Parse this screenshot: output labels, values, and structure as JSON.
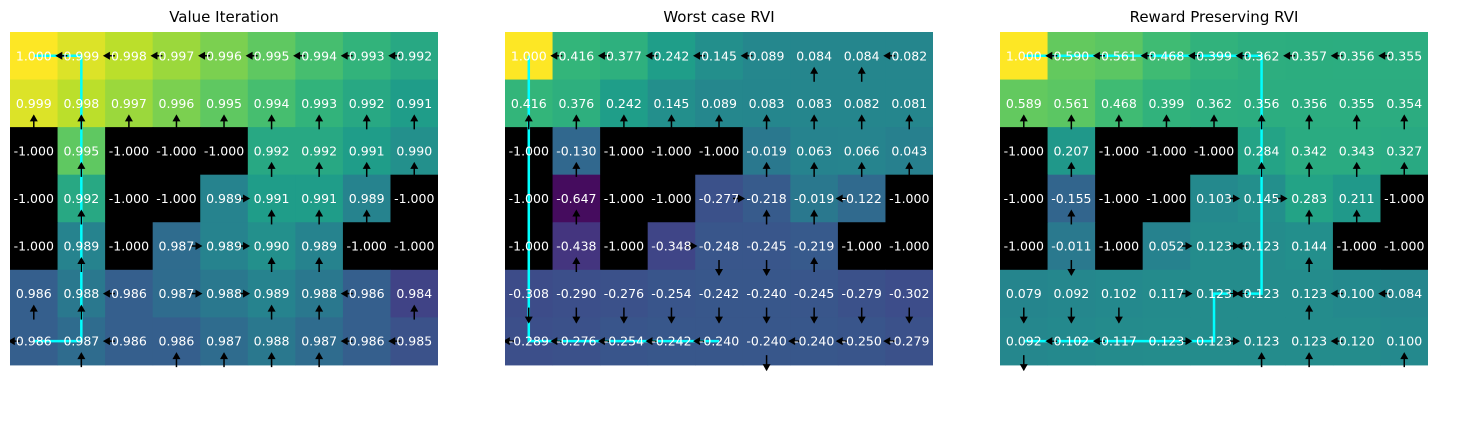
{
  "chart_data": [
    {
      "type": "heatmap",
      "title": "Value Iteration",
      "colormap": "viridis",
      "vmin": 0.98,
      "vmax": 1.0,
      "wall_value": -1.0,
      "wall_color": "#000000",
      "values": [
        [
          "1.000",
          "0.999",
          "0.998",
          "0.997",
          "0.996",
          "0.995",
          "0.994",
          "0.993",
          "0.992"
        ],
        [
          "0.999",
          "0.998",
          "0.997",
          "0.996",
          "0.995",
          "0.994",
          "0.993",
          "0.992",
          "0.991"
        ],
        [
          "-1.000",
          "0.995",
          "-1.000",
          "-1.000",
          "-1.000",
          "0.992",
          "0.992",
          "0.991",
          "0.990"
        ],
        [
          "-1.000",
          "0.992",
          "-1.000",
          "-1.000",
          "0.989",
          "0.991",
          "0.991",
          "0.989",
          "-1.000"
        ],
        [
          "-1.000",
          "0.989",
          "-1.000",
          "0.987",
          "0.989",
          "0.990",
          "0.989",
          "-1.000",
          "-1.000"
        ],
        [
          "0.986",
          "0.988",
          "0.986",
          "0.987",
          "0.988",
          "0.989",
          "0.988",
          "0.986",
          "0.984"
        ],
        [
          "0.986",
          "0.987",
          "0.986",
          "0.986",
          "0.987",
          "0.988",
          "0.987",
          "0.986",
          "0.985"
        ]
      ],
      "arrows": [
        [
          "",
          "L",
          "L",
          "L",
          "L",
          "L",
          "L",
          "L",
          "L"
        ],
        [
          "U",
          "U",
          "U",
          "U",
          "U",
          "U",
          "U",
          "U",
          "U"
        ],
        [
          "",
          "U",
          "",
          "",
          "",
          "U",
          "U",
          "U",
          "U"
        ],
        [
          "",
          "U",
          "",
          "",
          "R",
          "U",
          "U",
          "U",
          ""
        ],
        [
          "",
          "U",
          "",
          "R",
          "R",
          "U",
          "U",
          "",
          ""
        ],
        [
          "U",
          "U",
          "L",
          "R",
          "R",
          "U",
          "U",
          "L",
          "U"
        ],
        [
          "L",
          "U",
          "L",
          "U",
          "U",
          "U",
          "U",
          "L",
          "L"
        ]
      ],
      "path": [
        [
          0,
          0
        ],
        [
          0,
          1
        ],
        [
          1,
          1
        ],
        [
          2,
          1
        ],
        [
          3,
          1
        ],
        [
          4,
          1
        ],
        [
          5,
          1
        ],
        [
          6,
          1
        ],
        [
          6,
          0
        ]
      ]
    },
    {
      "type": "heatmap",
      "title": "Worst case RVI",
      "colormap": "viridis",
      "vmin": -0.7,
      "vmax": 1.0,
      "wall_value": -1.0,
      "wall_color": "#000000",
      "values": [
        [
          "1.000",
          "0.416",
          "0.377",
          "0.242",
          "0.145",
          "0.089",
          "0.084",
          "0.084",
          "0.082"
        ],
        [
          "0.416",
          "0.376",
          "0.242",
          "0.145",
          "0.089",
          "0.083",
          "0.083",
          "0.082",
          "0.081"
        ],
        [
          "-1.000",
          "-0.130",
          "-1.000",
          "-1.000",
          "-1.000",
          "-0.019",
          "0.063",
          "0.066",
          "0.043"
        ],
        [
          "-1.000",
          "-0.647",
          "-1.000",
          "-1.000",
          "-0.277",
          "-0.218",
          "-0.019",
          "-0.122",
          "-1.000"
        ],
        [
          "-1.000",
          "-0.438",
          "-1.000",
          "-0.348",
          "-0.248",
          "-0.245",
          "-0.219",
          "-1.000",
          "-1.000"
        ],
        [
          "-0.308",
          "-0.290",
          "-0.276",
          "-0.254",
          "-0.242",
          "-0.240",
          "-0.245",
          "-0.279",
          "-0.302"
        ],
        [
          "-0.289",
          "-0.276",
          "-0.254",
          "-0.242",
          "-0.240",
          "-0.240",
          "-0.240",
          "-0.250",
          "-0.279"
        ]
      ],
      "arrows": [
        [
          "",
          "L",
          "L",
          "L",
          "L",
          "L",
          "U",
          "U",
          "L"
        ],
        [
          "U",
          "U",
          "U",
          "U",
          "U",
          "U",
          "U",
          "U",
          "U"
        ],
        [
          "",
          "U",
          "",
          "",
          "",
          "U",
          "U",
          "U",
          "U"
        ],
        [
          "",
          "U",
          "",
          "",
          "R",
          "U",
          "U",
          "L",
          ""
        ],
        [
          "",
          "U",
          "",
          "R",
          "D",
          "D",
          "U",
          "",
          ""
        ],
        [
          "D",
          "D",
          "D",
          "D",
          "D",
          "D",
          "D",
          "D",
          "D"
        ],
        [
          "L",
          "L",
          "L",
          "L",
          "L",
          "D",
          "L",
          "L",
          "L"
        ]
      ],
      "path": [
        [
          0,
          0
        ],
        [
          6,
          0
        ],
        [
          6,
          1
        ],
        [
          6,
          2
        ],
        [
          6,
          3
        ],
        [
          6,
          4
        ]
      ]
    },
    {
      "type": "heatmap",
      "title": "Reward Preserving RVI",
      "colormap": "viridis",
      "vmin": -0.7,
      "vmax": 1.0,
      "wall_value": -1.0,
      "wall_color": "#000000",
      "values": [
        [
          "1.000",
          "0.590",
          "0.561",
          "0.468",
          "0.399",
          "0.362",
          "0.357",
          "0.356",
          "0.355"
        ],
        [
          "0.589",
          "0.561",
          "0.468",
          "0.399",
          "0.362",
          "0.356",
          "0.356",
          "0.355",
          "0.354"
        ],
        [
          "-1.000",
          "0.207",
          "-1.000",
          "-1.000",
          "-1.000",
          "0.284",
          "0.342",
          "0.343",
          "0.327"
        ],
        [
          "-1.000",
          "-0.155",
          "-1.000",
          "-1.000",
          "0.103",
          "0.145",
          "0.283",
          "0.211",
          "-1.000"
        ],
        [
          "-1.000",
          "-0.011",
          "-1.000",
          "0.052",
          "0.123",
          "0.123",
          "0.144",
          "-1.000",
          "-1.000"
        ],
        [
          "0.079",
          "0.092",
          "0.102",
          "0.117",
          "0.123",
          "0.123",
          "0.123",
          "0.100",
          "0.084"
        ],
        [
          "0.092",
          "0.102",
          "0.117",
          "0.123",
          "0.123",
          "0.123",
          "0.123",
          "0.120",
          "0.100"
        ]
      ],
      "arrows": [
        [
          "",
          "L",
          "L",
          "L",
          "L",
          "L",
          "L",
          "L",
          "L"
        ],
        [
          "U",
          "U",
          "U",
          "U",
          "U",
          "U",
          "U",
          "U",
          "U"
        ],
        [
          "",
          "U",
          "",
          "",
          "",
          "U",
          "U",
          "U",
          "U"
        ],
        [
          "",
          "U",
          "",
          "",
          "R",
          "R",
          "U",
          "U",
          ""
        ],
        [
          "",
          "D",
          "",
          "R",
          "R",
          "L",
          "U",
          "",
          ""
        ],
        [
          "D",
          "D",
          "D",
          "R",
          "R",
          "L",
          "U",
          "L",
          "L"
        ],
        [
          "D",
          "L",
          "L",
          "R",
          "R",
          "U",
          "U",
          "L",
          "U"
        ]
      ],
      "path": [
        [
          0,
          0
        ],
        [
          0,
          1
        ],
        [
          0,
          2
        ],
        [
          0,
          3
        ],
        [
          0,
          4
        ],
        [
          0,
          5
        ],
        [
          1,
          5
        ],
        [
          2,
          5
        ],
        [
          3,
          5
        ],
        [
          4,
          5
        ],
        [
          5,
          5
        ],
        [
          5,
          4
        ],
        [
          6,
          4
        ],
        [
          6,
          3
        ],
        [
          6,
          2
        ],
        [
          6,
          1
        ],
        [
          6,
          0
        ]
      ]
    }
  ]
}
